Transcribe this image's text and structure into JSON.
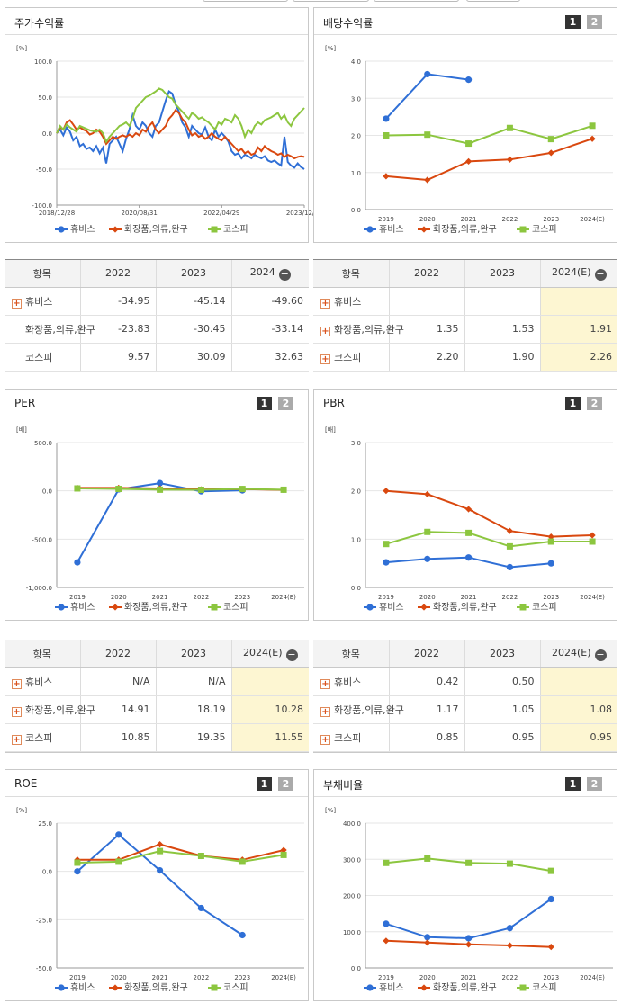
{
  "colors": {
    "hubis": "#2f6fd6",
    "cosmetics": "#d9480f",
    "kospi": "#8cc63f"
  },
  "series_names": [
    "휴비스",
    "화장품,의류,완구",
    "코스피"
  ],
  "panels": {
    "stock_return": {
      "title": "주가수익률",
      "unit": "[%]"
    },
    "dividend": {
      "title": "배당수익률",
      "unit": "[%]",
      "btn1": "1",
      "btn2": "2"
    },
    "per": {
      "title": "PER",
      "unit": "[배]",
      "btn1": "1",
      "btn2": "2"
    },
    "pbr": {
      "title": "PBR",
      "unit": "[배]",
      "btn1": "1",
      "btn2": "2"
    },
    "roe": {
      "title": "ROE",
      "unit": "[%]",
      "btn1": "1",
      "btn2": "2"
    },
    "debt": {
      "title": "부채비율",
      "unit": "[%]",
      "btn1": "1",
      "btn2": "2"
    }
  },
  "chart_data": [
    {
      "id": "stock_return",
      "type": "line",
      "x_labels": [
        "2018/12/28",
        "2020/08/31",
        "2022/04/29",
        "2023/12/28"
      ],
      "y_ticks": [
        "100.0",
        "50.0",
        "0.0",
        "-50.0",
        "-100.0"
      ],
      "ylim": [
        -100,
        100
      ],
      "series": [
        {
          "name": "휴비스",
          "values": [
            0,
            5,
            -3,
            8,
            2,
            -10,
            -5,
            -18,
            -15,
            -22,
            -20,
            -25,
            -18,
            -28,
            -20,
            -42,
            -15,
            -10,
            -5,
            -15,
            -25,
            -8,
            5,
            25,
            10,
            5,
            15,
            10,
            0,
            -5,
            10,
            15,
            30,
            45,
            58,
            55,
            40,
            30,
            15,
            8,
            -5,
            10,
            5,
            0,
            -2,
            8,
            -5,
            -10,
            5,
            -5,
            0,
            -5,
            -12,
            -25,
            -30,
            -28,
            -35,
            -30,
            -32,
            -35,
            -30,
            -33,
            -35,
            -32,
            -38,
            -40,
            -38,
            -42,
            -45,
            -5,
            -40,
            -45,
            -48,
            -42,
            -47,
            -50
          ]
        },
        {
          "name": "화장품,의류,완구",
          "values": [
            0,
            8,
            5,
            15,
            18,
            12,
            5,
            8,
            5,
            3,
            -2,
            0,
            5,
            2,
            -5,
            -15,
            -10,
            -5,
            -8,
            -5,
            -3,
            -5,
            -2,
            -5,
            0,
            -3,
            5,
            2,
            10,
            15,
            5,
            0,
            5,
            10,
            20,
            25,
            32,
            28,
            20,
            15,
            5,
            -3,
            0,
            -5,
            -3,
            -8,
            -5,
            0,
            -5,
            -8,
            -10,
            -5,
            -10,
            -15,
            -20,
            -25,
            -22,
            -28,
            -25,
            -30,
            -28,
            -20,
            -25,
            -18,
            -22,
            -25,
            -27,
            -30,
            -28,
            -33,
            -30,
            -32,
            -35,
            -33,
            -32,
            -33
          ]
        },
        {
          "name": "코스피",
          "values": [
            0,
            10,
            5,
            12,
            8,
            5,
            2,
            10,
            8,
            6,
            4,
            3,
            2,
            5,
            0,
            -12,
            -5,
            0,
            5,
            10,
            12,
            15,
            10,
            20,
            35,
            40,
            45,
            50,
            52,
            55,
            58,
            62,
            60,
            55,
            50,
            48,
            40,
            35,
            30,
            25,
            20,
            28,
            25,
            20,
            22,
            18,
            15,
            10,
            5,
            15,
            12,
            20,
            18,
            15,
            25,
            20,
            10,
            -5,
            5,
            0,
            10,
            15,
            12,
            18,
            20,
            22,
            25,
            28,
            20,
            25,
            15,
            10,
            20,
            25,
            30,
            35
          ]
        }
      ]
    },
    {
      "id": "dividend",
      "type": "line",
      "categories": [
        "2019",
        "2020",
        "2021",
        "2022",
        "2023",
        "2024(E)"
      ],
      "y_ticks": [
        "4.0",
        "3.0",
        "2.0",
        "1.0",
        "0.0"
      ],
      "ylim": [
        0,
        4
      ],
      "series": [
        {
          "name": "휴비스",
          "values": [
            2.45,
            3.65,
            3.5,
            null,
            null,
            null
          ]
        },
        {
          "name": "화장품,의류,완구",
          "values": [
            0.9,
            0.8,
            1.3,
            1.35,
            1.53,
            1.91
          ]
        },
        {
          "name": "코스피",
          "values": [
            2.0,
            2.02,
            1.78,
            2.2,
            1.9,
            2.26
          ]
        }
      ]
    },
    {
      "id": "per",
      "type": "line",
      "categories": [
        "2019",
        "2020",
        "2021",
        "2022",
        "2023",
        "2024(E)"
      ],
      "y_ticks": [
        "500.0",
        "0.0",
        "-500.0",
        "-1,000.0"
      ],
      "ylim": [
        -1000,
        500
      ],
      "series": [
        {
          "name": "휴비스",
          "values": [
            -740,
            15,
            80,
            -5,
            5,
            null
          ]
        },
        {
          "name": "화장품,의류,완구",
          "values": [
            30,
            30,
            25,
            14.91,
            18.19,
            10.28
          ]
        },
        {
          "name": "코스피",
          "values": [
            25,
            20,
            12,
            10.85,
            19.35,
            11.55
          ]
        }
      ]
    },
    {
      "id": "pbr",
      "type": "line",
      "categories": [
        "2019",
        "2020",
        "2021",
        "2022",
        "2023",
        "2024(E)"
      ],
      "y_ticks": [
        "3.0",
        "2.0",
        "1.0",
        "0.0"
      ],
      "ylim": [
        0,
        3
      ],
      "series": [
        {
          "name": "휴비스",
          "values": [
            0.52,
            0.59,
            0.62,
            0.42,
            0.5,
            null
          ]
        },
        {
          "name": "화장품,의류,완구",
          "values": [
            2.0,
            1.93,
            1.62,
            1.17,
            1.05,
            1.08
          ]
        },
        {
          "name": "코스피",
          "values": [
            0.9,
            1.15,
            1.13,
            0.85,
            0.95,
            0.95
          ]
        }
      ]
    },
    {
      "id": "roe",
      "type": "line",
      "categories": [
        "2019",
        "2020",
        "2021",
        "2022",
        "2023",
        "2024(E)"
      ],
      "y_ticks": [
        "25.0",
        "0.0",
        "-25.0",
        "-50.0"
      ],
      "ylim": [
        -50,
        25
      ],
      "series": [
        {
          "name": "휴비스",
          "values": [
            0,
            19,
            0.5,
            -19,
            -33,
            null
          ]
        },
        {
          "name": "화장품,의류,완구",
          "values": [
            6,
            6,
            14,
            8,
            6,
            11
          ]
        },
        {
          "name": "코스피",
          "values": [
            4.5,
            5,
            10.5,
            8,
            5,
            8.5
          ]
        }
      ]
    },
    {
      "id": "debt",
      "type": "line",
      "categories": [
        "2019",
        "2020",
        "2021",
        "2022",
        "2023",
        "2024(E)"
      ],
      "y_ticks": [
        "400.0",
        "300.0",
        "200.0",
        "100.0",
        "0.0"
      ],
      "ylim": [
        0,
        400
      ],
      "series": [
        {
          "name": "휴비스",
          "values": [
            122,
            85,
            82,
            110,
            190,
            null
          ]
        },
        {
          "name": "화장품,의류,완구",
          "values": [
            75,
            70,
            65,
            62,
            58,
            null
          ]
        },
        {
          "name": "코스피",
          "values": [
            290,
            302,
            290,
            288,
            268,
            null
          ]
        }
      ]
    }
  ],
  "tables": {
    "stock_return": {
      "header": [
        "항목",
        "2022",
        "2023",
        "2024"
      ],
      "rows": [
        {
          "label": "휴비스",
          "plus": true,
          "values": [
            "-34.95",
            "-45.14",
            "-49.60"
          ]
        },
        {
          "label": "화장품,의류,완구",
          "plus": false,
          "values": [
            "-23.83",
            "-30.45",
            "-33.14"
          ]
        },
        {
          "label": "코스피",
          "plus": false,
          "values": [
            "9.57",
            "30.09",
            "32.63"
          ]
        }
      ]
    },
    "dividend": {
      "header": [
        "항목",
        "2022",
        "2023",
        "2024(E)"
      ],
      "rows": [
        {
          "label": "휴비스",
          "plus": true,
          "values": [
            "",
            "",
            ""
          ]
        },
        {
          "label": "화장품,의류,완구",
          "plus": true,
          "values": [
            "1.35",
            "1.53",
            "1.91"
          ]
        },
        {
          "label": "코스피",
          "plus": true,
          "values": [
            "2.20",
            "1.90",
            "2.26"
          ]
        }
      ]
    },
    "per": {
      "header": [
        "항목",
        "2022",
        "2023",
        "2024(E)"
      ],
      "rows": [
        {
          "label": "휴비스",
          "plus": true,
          "values": [
            "N/A",
            "N/A",
            ""
          ]
        },
        {
          "label": "화장품,의류,완구",
          "plus": true,
          "values": [
            "14.91",
            "18.19",
            "10.28"
          ]
        },
        {
          "label": "코스피",
          "plus": true,
          "values": [
            "10.85",
            "19.35",
            "11.55"
          ]
        }
      ]
    },
    "pbr": {
      "header": [
        "항목",
        "2022",
        "2023",
        "2024(E)"
      ],
      "rows": [
        {
          "label": "휴비스",
          "plus": true,
          "values": [
            "0.42",
            "0.50",
            ""
          ]
        },
        {
          "label": "화장품,의류,완구",
          "plus": true,
          "values": [
            "1.17",
            "1.05",
            "1.08"
          ]
        },
        {
          "label": "코스피",
          "plus": true,
          "values": [
            "0.85",
            "0.95",
            "0.95"
          ]
        }
      ]
    }
  }
}
